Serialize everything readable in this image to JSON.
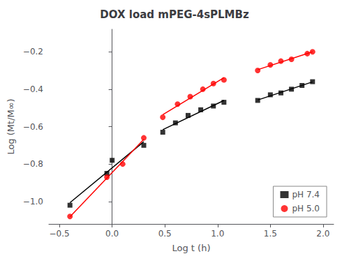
{
  "chart_data": {
    "type": "scatter",
    "title": "DOX load mPEG-4sPLMBz",
    "xlabel": "Log t (h)",
    "ylabel": "Log (Mt/M∞)",
    "xlim": [
      -0.6,
      2.1
    ],
    "ylim": [
      -1.12,
      -0.08
    ],
    "xticks": [
      {
        "value": -0.5,
        "label": "−0.5"
      },
      {
        "value": 0.0,
        "label": "0.0"
      },
      {
        "value": 0.5,
        "label": "0.5"
      },
      {
        "value": 1.0,
        "label": "1.0"
      },
      {
        "value": 1.5,
        "label": "1.5"
      },
      {
        "value": 2.0,
        "label": "2.0"
      }
    ],
    "yticks": [
      {
        "value": -1.0,
        "label": "−1.0"
      },
      {
        "value": -0.8,
        "label": "−0.8"
      },
      {
        "value": -0.6,
        "label": "−0.6"
      },
      {
        "value": -0.4,
        "label": "−0.4"
      },
      {
        "value": -0.2,
        "label": "−0.2"
      }
    ],
    "grid": false,
    "legend": "lower right",
    "series": [
      {
        "name": "pH 7.4",
        "color": "#000000",
        "marker": "square",
        "segments": [
          {
            "x": [
              -0.4,
              -0.05,
              0.0,
              0.3
            ],
            "values": [
              -1.02,
              -0.85,
              -0.78,
              -0.7
            ],
            "fit_x": [
              -0.4,
              0.3
            ],
            "fit": [
              -1.0062,
              -0.6805
            ]
          },
          {
            "x": [
              0.48,
              0.6,
              0.72,
              0.84,
              0.96,
              1.06
            ],
            "values": [
              -0.63,
              -0.58,
              -0.54,
              -0.51,
              -0.49,
              -0.47
            ],
            "fit_x": [
              0.48,
              1.06
            ],
            "fit": [
              -0.6165,
              -0.4604
            ]
          },
          {
            "x": [
              1.38,
              1.5,
              1.6,
              1.7,
              1.8,
              1.9
            ],
            "values": [
              -0.46,
              -0.43,
              -0.42,
              -0.4,
              -0.38,
              -0.36
            ],
            "fit_x": [
              1.38,
              1.9
            ],
            "fit": [
              -0.458,
              -0.3611
            ]
          }
        ]
      },
      {
        "name": "pH 5.0",
        "color": "#ff0000",
        "marker": "circle",
        "segments": [
          {
            "x": [
              -0.4,
              -0.05,
              0.1,
              0.3
            ],
            "values": [
              -1.08,
              -0.87,
              -0.8,
              -0.66
            ],
            "fit_x": [
              -0.4,
              0.3
            ],
            "fit": [
              -1.0817,
              -0.6677
            ]
          },
          {
            "x": [
              0.48,
              0.62,
              0.74,
              0.86,
              0.96,
              1.06
            ],
            "values": [
              -0.55,
              -0.48,
              -0.44,
              -0.4,
              -0.37,
              -0.35
            ],
            "fit_x": [
              0.48,
              1.06
            ],
            "fit": [
              -0.5365,
              -0.3382
            ]
          },
          {
            "x": [
              1.38,
              1.5,
              1.6,
              1.7,
              1.85,
              1.9
            ],
            "values": [
              -0.3,
              -0.27,
              -0.25,
              -0.24,
              -0.21,
              -0.2
            ],
            "fit_x": [
              1.38,
              1.9
            ],
            "fit": [
              -0.2957,
              -0.1999
            ]
          }
        ]
      }
    ]
  }
}
